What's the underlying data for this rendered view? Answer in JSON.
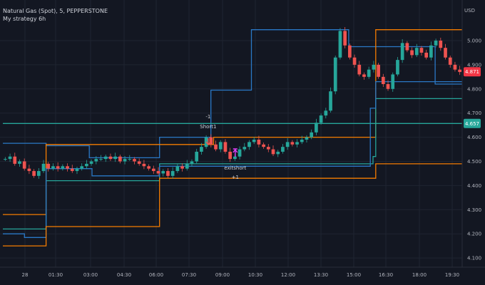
{
  "header": {
    "symbol_title": "Natural Gas (Spot), 5, PEPPERSTONE",
    "strategy_label": "My strategy 6h",
    "currency": "USD"
  },
  "chart_data": {
    "type": "candlestick",
    "x_ticks": [
      "28",
      "01:30",
      "03:00",
      "04:30",
      "06:00",
      "07:30",
      "09:00",
      "10:30",
      "12:00",
      "13:30",
      "15:00",
      "16:30",
      "18:00",
      "19:30"
    ],
    "y_ticks": [
      "5.000",
      "4.900",
      "4.800",
      "4.700",
      "4.600",
      "4.500",
      "4.400",
      "4.300",
      "4.200",
      "4.100"
    ],
    "ylim": [
      4.06,
      5.1
    ],
    "last_price": {
      "label": "4.871",
      "value": 4.871,
      "color": "#f23645"
    },
    "level_price": {
      "label": "4.657",
      "value": 4.657,
      "color": "#26a69a"
    },
    "close_series": [
      4.51,
      4.52,
      4.49,
      4.5,
      4.47,
      4.46,
      4.44,
      4.46,
      4.49,
      4.47,
      4.48,
      4.47,
      4.48,
      4.47,
      4.46,
      4.47,
      4.48,
      4.49,
      4.5,
      4.51,
      4.51,
      4.52,
      4.51,
      4.52,
      4.5,
      4.51,
      4.51,
      4.5,
      4.49,
      4.48,
      4.47,
      4.46,
      4.45,
      4.46,
      4.44,
      4.46,
      4.48,
      4.47,
      4.49,
      4.5,
      4.54,
      4.56,
      4.6,
      4.57,
      4.55,
      4.58,
      4.54,
      4.51,
      4.52,
      4.55,
      4.56,
      4.58,
      4.59,
      4.57,
      4.56,
      4.55,
      4.53,
      4.54,
      4.56,
      4.58,
      4.57,
      4.58,
      4.59,
      4.6,
      4.62,
      4.66,
      4.69,
      4.71,
      4.79,
      4.93,
      5.04,
      4.98,
      4.93,
      4.9,
      4.86,
      4.85,
      4.88,
      4.9,
      4.85,
      4.82,
      4.8,
      4.86,
      4.92,
      4.99,
      4.96,
      4.94,
      4.97,
      4.95,
      4.93,
      4.98,
      5.0,
      4.97,
      4.93,
      4.9,
      4.88,
      4.87
    ],
    "signals": {
      "short_label": "Short1",
      "short_qty": "-1",
      "exit_label": "exitshort",
      "exit_qty": "+1"
    },
    "series": [
      {
        "color": "#2a78c6",
        "role": "upper band",
        "steps": [
          [
            0,
            4.575
          ],
          [
            16,
            4.575
          ],
          [
            16,
            4.565
          ],
          [
            32,
            4.565
          ],
          [
            32,
            4.515
          ],
          [
            58,
            4.515
          ],
          [
            58,
            4.6
          ],
          [
            77,
            4.6
          ],
          [
            77,
            4.795
          ],
          [
            92,
            4.795
          ],
          [
            92,
            5.045
          ],
          [
            128,
            5.045
          ],
          [
            128,
            4.975
          ],
          [
            160,
            4.975
          ],
          [
            160,
            4.82
          ],
          [
            170,
            4.82
          ]
        ]
      },
      {
        "color": "#f57c00",
        "role": "entry band",
        "steps": [
          [
            0,
            4.28
          ],
          [
            16,
            4.28
          ],
          [
            16,
            4.57
          ],
          [
            78,
            4.57
          ],
          [
            78,
            4.6
          ],
          [
            138,
            4.6
          ],
          [
            138,
            5.045
          ],
          [
            170,
            5.045
          ]
        ]
      },
      {
        "color": "#26a69a",
        "role": "mid band",
        "steps": [
          [
            0,
            4.22
          ],
          [
            16,
            4.22
          ],
          [
            16,
            4.42
          ],
          [
            58,
            4.42
          ],
          [
            58,
            4.49
          ],
          [
            137,
            4.49
          ],
          [
            137,
            4.52
          ],
          [
            138,
            4.52
          ],
          [
            138,
            4.76
          ],
          [
            170,
            4.76
          ]
        ]
      },
      {
        "color": "#2a78c6",
        "role": "lower band",
        "steps": [
          [
            0,
            4.2
          ],
          [
            8,
            4.2
          ],
          [
            8,
            4.185
          ],
          [
            16,
            4.185
          ],
          [
            16,
            4.47
          ],
          [
            33,
            4.47
          ],
          [
            33,
            4.44
          ],
          [
            58,
            4.44
          ],
          [
            58,
            4.48
          ],
          [
            136,
            4.48
          ],
          [
            136,
            4.72
          ],
          [
            138,
            4.72
          ],
          [
            138,
            4.83
          ],
          [
            170,
            4.83
          ]
        ]
      },
      {
        "color": "#f57c00",
        "role": "stop band",
        "steps": [
          [
            0,
            4.15
          ],
          [
            16,
            4.15
          ],
          [
            16,
            4.23
          ],
          [
            58,
            4.23
          ],
          [
            58,
            4.43
          ],
          [
            138,
            4.43
          ],
          [
            138,
            4.49
          ],
          [
            170,
            4.49
          ]
        ]
      },
      {
        "color": "#26a69a",
        "role": "level",
        "steps": [
          [
            0,
            4.657
          ],
          [
            170,
            4.657
          ]
        ]
      }
    ]
  }
}
